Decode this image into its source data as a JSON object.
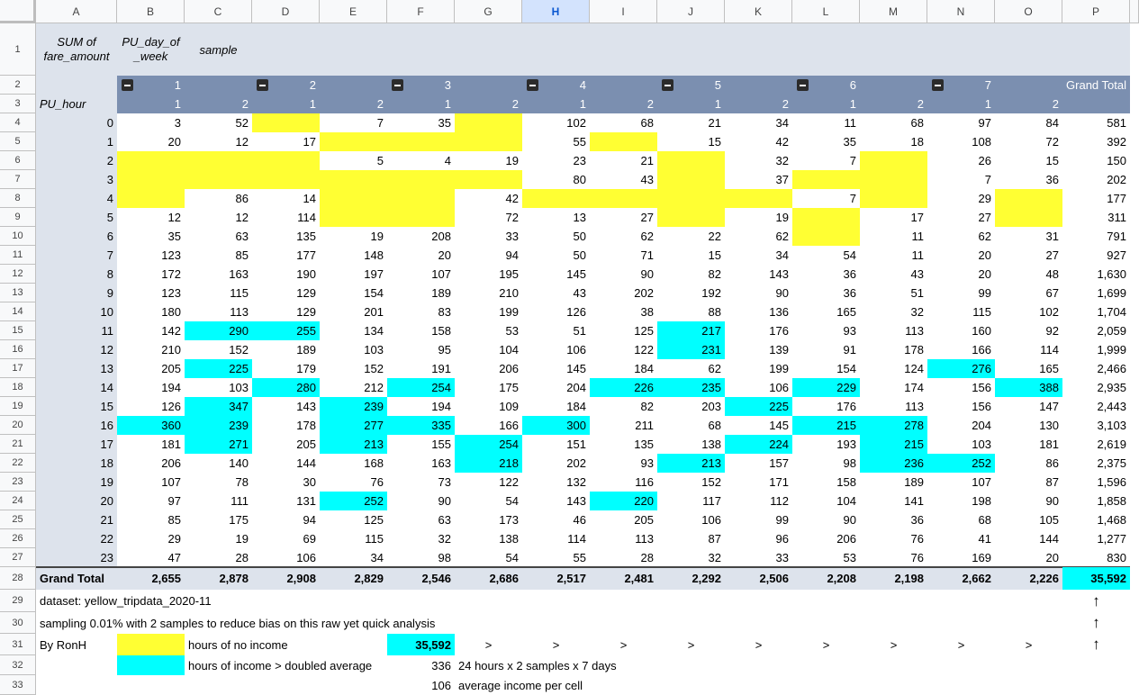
{
  "columns": [
    "A",
    "B",
    "C",
    "D",
    "E",
    "F",
    "G",
    "H",
    "I",
    "J",
    "K",
    "L",
    "M",
    "N",
    "O",
    "P"
  ],
  "selected_column": "H",
  "rows": [
    "1",
    "2",
    "3",
    "4",
    "5",
    "6",
    "7",
    "8",
    "9",
    "10",
    "11",
    "12",
    "13",
    "14",
    "15",
    "16",
    "17",
    "18",
    "19",
    "20",
    "21",
    "22",
    "23",
    "24",
    "25",
    "26",
    "27",
    "28",
    "29",
    "30",
    "31",
    "32",
    "33"
  ],
  "pivot": {
    "values_label": "SUM of\nfare_amount",
    "columns_label": "PU_day_of\n_week",
    "sample_label": "sample",
    "rows_label": "PU_hour",
    "grand_total_label": "Grand Total",
    "days": [
      "1",
      "2",
      "3",
      "4",
      "5",
      "6",
      "7"
    ],
    "samples": [
      "1",
      "2",
      "1",
      "2",
      "1",
      "2",
      "1",
      "2",
      "1",
      "2",
      "1",
      "2",
      "1",
      "2"
    ],
    "hours": [
      "0",
      "1",
      "2",
      "3",
      "4",
      "5",
      "6",
      "7",
      "8",
      "9",
      "10",
      "11",
      "12",
      "13",
      "14",
      "15",
      "16",
      "17",
      "18",
      "19",
      "20",
      "21",
      "22",
      "23"
    ],
    "values": [
      [
        "3",
        "52",
        "",
        "7",
        "35",
        "",
        "102",
        "68",
        "21",
        "34",
        "11",
        "68",
        "97",
        "84",
        "581"
      ],
      [
        "20",
        "12",
        "17",
        "",
        "",
        "",
        "55",
        "",
        "15",
        "42",
        "35",
        "18",
        "108",
        "72",
        "392"
      ],
      [
        "",
        "",
        "",
        "5",
        "4",
        "19",
        "23",
        "21",
        "",
        "32",
        "7",
        "",
        "26",
        "15",
        "150"
      ],
      [
        "",
        "",
        "",
        "",
        "",
        "",
        "80",
        "43",
        "",
        "37",
        "",
        "",
        "7",
        "36",
        "202"
      ],
      [
        "",
        "86",
        "14",
        "",
        "",
        "42",
        "",
        "",
        "",
        "",
        "7",
        "",
        "29",
        "",
        "177"
      ],
      [
        "12",
        "12",
        "114",
        "",
        "",
        "72",
        "13",
        "27",
        "",
        "19",
        "",
        "17",
        "27",
        "",
        "311"
      ],
      [
        "35",
        "63",
        "135",
        "19",
        "208",
        "33",
        "50",
        "62",
        "22",
        "62",
        "",
        "11",
        "62",
        "31",
        "791"
      ],
      [
        "123",
        "85",
        "177",
        "148",
        "20",
        "94",
        "50",
        "71",
        "15",
        "34",
        "54",
        "11",
        "20",
        "27",
        "927"
      ],
      [
        "172",
        "163",
        "190",
        "197",
        "107",
        "195",
        "145",
        "90",
        "82",
        "143",
        "36",
        "43",
        "20",
        "48",
        "1,630"
      ],
      [
        "123",
        "115",
        "129",
        "154",
        "189",
        "210",
        "43",
        "202",
        "192",
        "90",
        "36",
        "51",
        "99",
        "67",
        "1,699"
      ],
      [
        "180",
        "113",
        "129",
        "201",
        "83",
        "199",
        "126",
        "38",
        "88",
        "136",
        "165",
        "32",
        "115",
        "102",
        "1,704"
      ],
      [
        "142",
        "290",
        "255",
        "134",
        "158",
        "53",
        "51",
        "125",
        "217",
        "176",
        "93",
        "113",
        "160",
        "92",
        "2,059"
      ],
      [
        "210",
        "152",
        "189",
        "103",
        "95",
        "104",
        "106",
        "122",
        "231",
        "139",
        "91",
        "178",
        "166",
        "114",
        "1,999"
      ],
      [
        "205",
        "225",
        "179",
        "152",
        "191",
        "206",
        "145",
        "184",
        "62",
        "199",
        "154",
        "124",
        "276",
        "165",
        "2,466"
      ],
      [
        "194",
        "103",
        "280",
        "212",
        "254",
        "175",
        "204",
        "226",
        "235",
        "106",
        "229",
        "174",
        "156",
        "388",
        "2,935"
      ],
      [
        "126",
        "347",
        "143",
        "239",
        "194",
        "109",
        "184",
        "82",
        "203",
        "225",
        "176",
        "113",
        "156",
        "147",
        "2,443"
      ],
      [
        "360",
        "239",
        "178",
        "277",
        "335",
        "166",
        "300",
        "211",
        "68",
        "145",
        "215",
        "278",
        "204",
        "130",
        "3,103"
      ],
      [
        "181",
        "271",
        "205",
        "213",
        "155",
        "254",
        "151",
        "135",
        "138",
        "224",
        "193",
        "215",
        "103",
        "181",
        "2,619"
      ],
      [
        "206",
        "140",
        "144",
        "168",
        "163",
        "218",
        "202",
        "93",
        "213",
        "157",
        "98",
        "236",
        "252",
        "86",
        "2,375"
      ],
      [
        "107",
        "78",
        "30",
        "76",
        "73",
        "122",
        "132",
        "116",
        "152",
        "171",
        "158",
        "189",
        "107",
        "87",
        "1,596"
      ],
      [
        "97",
        "111",
        "131",
        "252",
        "90",
        "54",
        "143",
        "220",
        "117",
        "112",
        "104",
        "141",
        "198",
        "90",
        "1,858"
      ],
      [
        "85",
        "175",
        "94",
        "125",
        "63",
        "173",
        "46",
        "205",
        "106",
        "99",
        "90",
        "36",
        "68",
        "105",
        "1,468"
      ],
      [
        "29",
        "19",
        "69",
        "115",
        "32",
        "138",
        "114",
        "113",
        "87",
        "96",
        "206",
        "76",
        "41",
        "144",
        "1,277"
      ],
      [
        "47",
        "28",
        "106",
        "34",
        "98",
        "54",
        "55",
        "28",
        "32",
        "33",
        "53",
        "76",
        "169",
        "20",
        "830"
      ]
    ],
    "grand_totals": [
      "2,655",
      "2,878",
      "2,908",
      "2,829",
      "2,546",
      "2,686",
      "2,517",
      "2,481",
      "2,292",
      "2,506",
      "2,208",
      "2,198",
      "2,662",
      "2,226",
      "35,592"
    ]
  },
  "notes": {
    "dataset": "dataset: yellow_tripdata_2020-11",
    "sampling": "sampling 0.01% with 2 samples to reduce bias on this raw yet quick analysis",
    "author": "By RonH",
    "legend_no_income": "hours of no income",
    "legend_high_income": "hours of income > doubled average",
    "total_copy": "35,592",
    "arrow_right": ">",
    "arrow_up": "↑",
    "cells_count": "336",
    "cells_desc": "24 hours x 2 samples x 7 days",
    "avg": "106",
    "avg_desc": "average income per cell"
  },
  "colors": {
    "header_bar": "#7b8fb0",
    "light_header": "#dde3ec",
    "no_income": "#ffff33",
    "high_income": "#00ffff"
  }
}
